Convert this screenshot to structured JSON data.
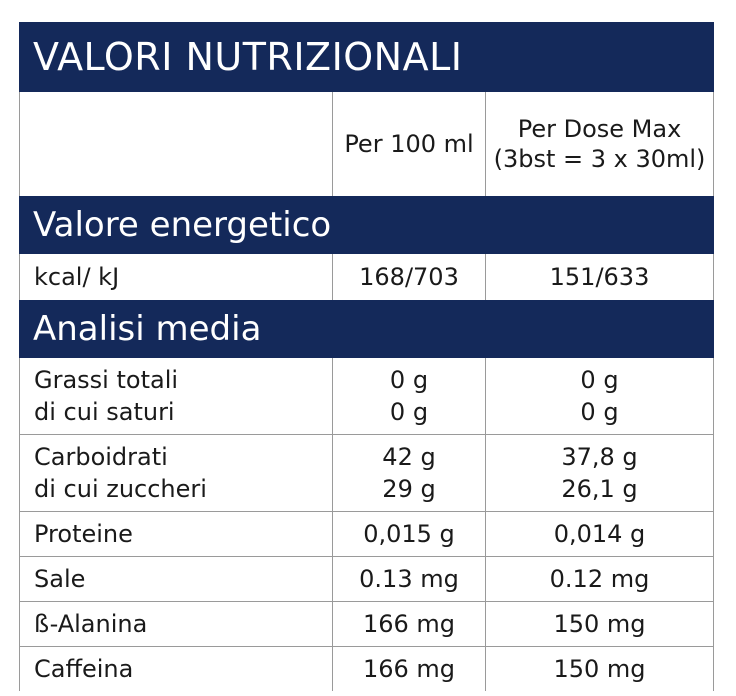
{
  "title": "VALORI NUTRIZIONALI",
  "columns": {
    "per_100ml": "Per 100 ml",
    "per_dose_line1": "Per Dose Max",
    "per_dose_line2": "(3bst = 3 x 30ml)"
  },
  "energy_section": {
    "heading": "Valore energetico",
    "label": "kcal/ kJ",
    "per_100ml": "168/703",
    "per_dose": "151/633"
  },
  "analysis_section": {
    "heading": "Analisi media",
    "rows": [
      {
        "label": "Grassi totali",
        "sublabel": "di cui saturi",
        "per_100ml": "0 g",
        "per_100ml_sub": "0 g",
        "per_dose": "0 g",
        "per_dose_sub": "0 g"
      },
      {
        "label": "Carboidrati",
        "sublabel": "di cui zuccheri",
        "per_100ml": "42 g",
        "per_100ml_sub": "29 g",
        "per_dose": "37,8 g",
        "per_dose_sub": "26,1 g"
      },
      {
        "label": "Proteine",
        "per_100ml": "0,015 g",
        "per_dose": "0,014 g"
      },
      {
        "label": "Sale",
        "per_100ml": "0.13 mg",
        "per_dose": "0.12 mg"
      },
      {
        "label": "ß-Alanina",
        "per_100ml": "166 mg",
        "per_dose": "150 mg"
      },
      {
        "label": "Caffeina",
        "per_100ml": "166 mg",
        "per_dose": "150 mg"
      }
    ]
  },
  "colors": {
    "header_band": "#14295a",
    "grid_line": "#9a9a9a",
    "text": "#1a1a1a"
  }
}
